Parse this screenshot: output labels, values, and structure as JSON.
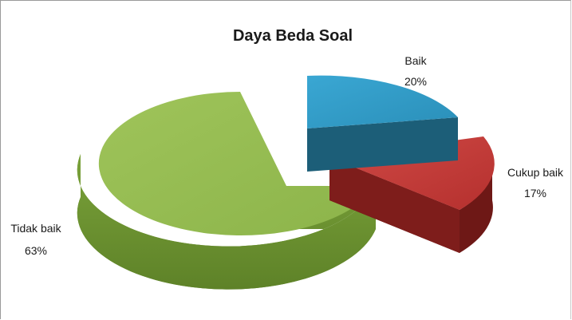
{
  "chart_data": {
    "type": "pie",
    "title": "Daya Beda Soal",
    "slices": [
      {
        "category": "Baik",
        "value": 20,
        "label": "20%",
        "color": "#2e9bc9",
        "color_side": "#1c5e78"
      },
      {
        "category": "Cukup baik",
        "value": 17,
        "label": "17%",
        "color": "#c73a38",
        "color_side": "#6e1816"
      },
      {
        "category": "Tidak baik",
        "value": 63,
        "label": "63%",
        "color": "#96bb4f",
        "color_side": "#6f9236"
      }
    ],
    "three_d": true,
    "exploded": true,
    "legend": "none"
  }
}
